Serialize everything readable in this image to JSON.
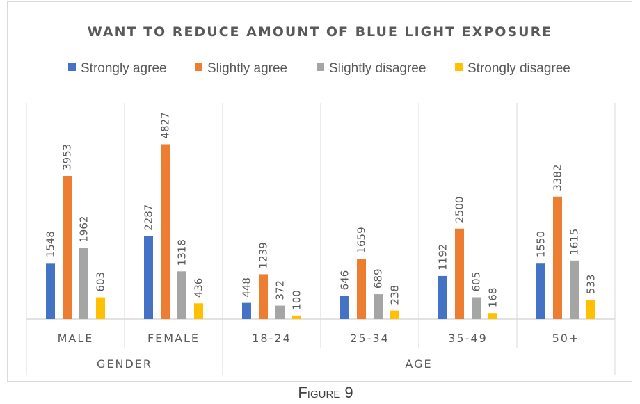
{
  "chart_data": {
    "type": "bar",
    "title": "WANT TO REDUCE AMOUNT OF BLUE LIGHT EXPOSURE",
    "groups": [
      {
        "label": "GENDER",
        "categories": [
          "MALE",
          "FEMALE"
        ]
      },
      {
        "label": "AGE",
        "categories": [
          "18-24",
          "25-34",
          "35-49",
          "50+"
        ]
      }
    ],
    "categories": [
      "MALE",
      "FEMALE",
      "18-24",
      "25-34",
      "35-49",
      "50+"
    ],
    "series": [
      {
        "name": "Strongly agree",
        "color": "#4472c4",
        "values": [
          1548,
          2287,
          448,
          646,
          1192,
          1550
        ]
      },
      {
        "name": "Slightly agree",
        "color": "#ed7d31",
        "values": [
          3953,
          4827,
          1239,
          1659,
          2500,
          3382
        ]
      },
      {
        "name": "Slightly disagree",
        "color": "#a5a5a5",
        "values": [
          1962,
          1318,
          372,
          689,
          605,
          1615
        ]
      },
      {
        "name": "Strongly disagree",
        "color": "#ffc000",
        "values": [
          603,
          436,
          100,
          238,
          168,
          533
        ]
      }
    ],
    "ylim": [
      0,
      6000
    ],
    "grid": false,
    "legend_position": "top",
    "data_labels": true
  },
  "caption": "Figure 9"
}
